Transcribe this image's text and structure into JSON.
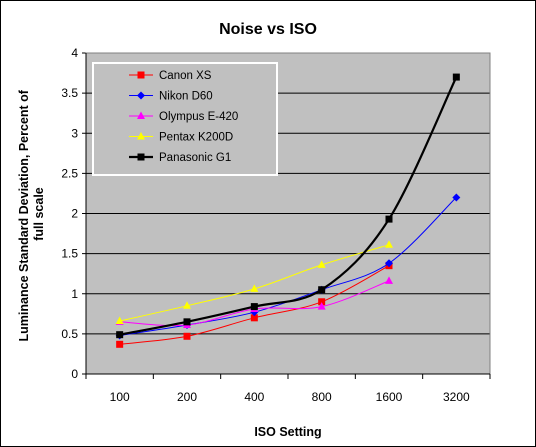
{
  "chart_data": {
    "type": "line",
    "title": "Noise vs ISO",
    "xlabel": "ISO Setting",
    "ylabel_lines": [
      "Luminance Standard Deviation, Percent of",
      "full scale"
    ],
    "categories": [
      "100",
      "200",
      "400",
      "800",
      "1600",
      "3200"
    ],
    "ylim": [
      0,
      4
    ],
    "yticks": [
      "0",
      "0.5",
      "1",
      "1.5",
      "2",
      "2.5",
      "3",
      "3.5",
      "4"
    ],
    "grid": true,
    "plot_background": "#c0c0c0",
    "legend_position": "top-left",
    "series": [
      {
        "name": "Canon XS",
        "color": "#ff0000",
        "marker": "square",
        "values": [
          0.37,
          0.47,
          0.7,
          0.9,
          1.35,
          null
        ]
      },
      {
        "name": "Nikon D60",
        "color": "#0000ff",
        "marker": "diamond",
        "values": [
          0.48,
          0.61,
          0.77,
          1.05,
          1.38,
          2.2
        ]
      },
      {
        "name": "Olympus E-420",
        "color": "#ff00ff",
        "marker": "triangle",
        "values": [
          0.65,
          0.61,
          0.81,
          0.84,
          1.16,
          null
        ]
      },
      {
        "name": "Pentax K200D",
        "color": "#ffff00",
        "marker": "triangle",
        "values": [
          0.66,
          0.85,
          1.06,
          1.36,
          1.61,
          null
        ]
      },
      {
        "name": "Panasonic G1",
        "color": "#000000",
        "marker": "square",
        "values": [
          0.49,
          0.65,
          0.84,
          1.05,
          1.93,
          3.7
        ]
      }
    ]
  }
}
